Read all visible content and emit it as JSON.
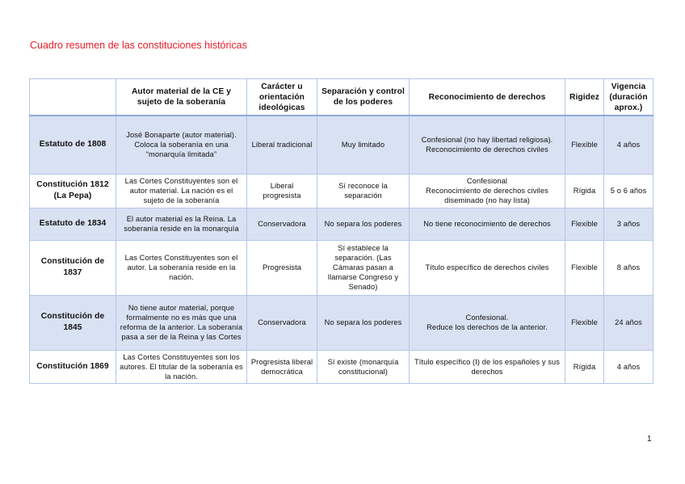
{
  "title": "Cuadro resumen de las constituciones históricas",
  "page_number": "1",
  "colors": {
    "title": "#e8202a",
    "row_shade": "#d9e2f3",
    "border": "#b4c6e7"
  },
  "table": {
    "headers": [
      "",
      "Autor material de la CE y sujeto de la soberanía",
      "Carácter u orientación ideológicas",
      "Separación y control de los poderes",
      "Reconocimiento de derechos",
      "Rigidez",
      "Vigencia (duración aprox.)"
    ],
    "rows": [
      [
        "Estatuto de 1808",
        "José Bonaparte (autor material). Coloca la soberanía en una “monarquía limitada”",
        "Liberal tradicional",
        "Muy limitado",
        "Confesional (no hay libertad religiosa). Reconocimiento de derechos civiles",
        "Flexible",
        "4 años"
      ],
      [
        "Constitución 1812 (La Pepa)",
        "Las Cortes Constituyentes son el autor material. La nación es el sujeto de la soberanía",
        "Liberal progresista",
        "Sí reconoce la separación",
        "Confesional\nReconocimiento de derechos civiles diseminado (no hay lista)",
        "Rígida",
        "5 o 6 años"
      ],
      [
        "Estatuto de 1834",
        "El autor material es la Reina. La soberanía reside en la monarquía",
        "Conservadora",
        "No separa los poderes",
        "No tiene reconocimiento de derechos",
        "Flexible",
        "3 años"
      ],
      [
        "Constitución de 1837",
        "Las Cortes Constituyentes son el autor. La soberanía reside en la nación.",
        "Progresista",
        "Sí establece la separación. (Las Cámaras pasan a llamarse Congreso y Senado)",
        "Título específico de derechos civiles",
        "Flexible",
        "8 años"
      ],
      [
        "Constitución de 1845",
        "No tiene autor material, porque formalmente no es más que una reforma de la anterior. La soberanía pasa a ser de la Reina y las Cortes",
        "Conservadora",
        "No separa los poderes",
        "Confesional.\nReduce los derechos de la anterior.",
        "Flexible",
        "24 años"
      ],
      [
        "Constitución 1869",
        "Las Cortes Constituyentes son los autores. El titular de la soberanía es la nación.",
        "Progresista liberal democrática",
        "Sí existe (monarquía constitucional)",
        "Título específico (I) de los españoles y sus derechos",
        "Rígida",
        "4 años"
      ]
    ]
  }
}
